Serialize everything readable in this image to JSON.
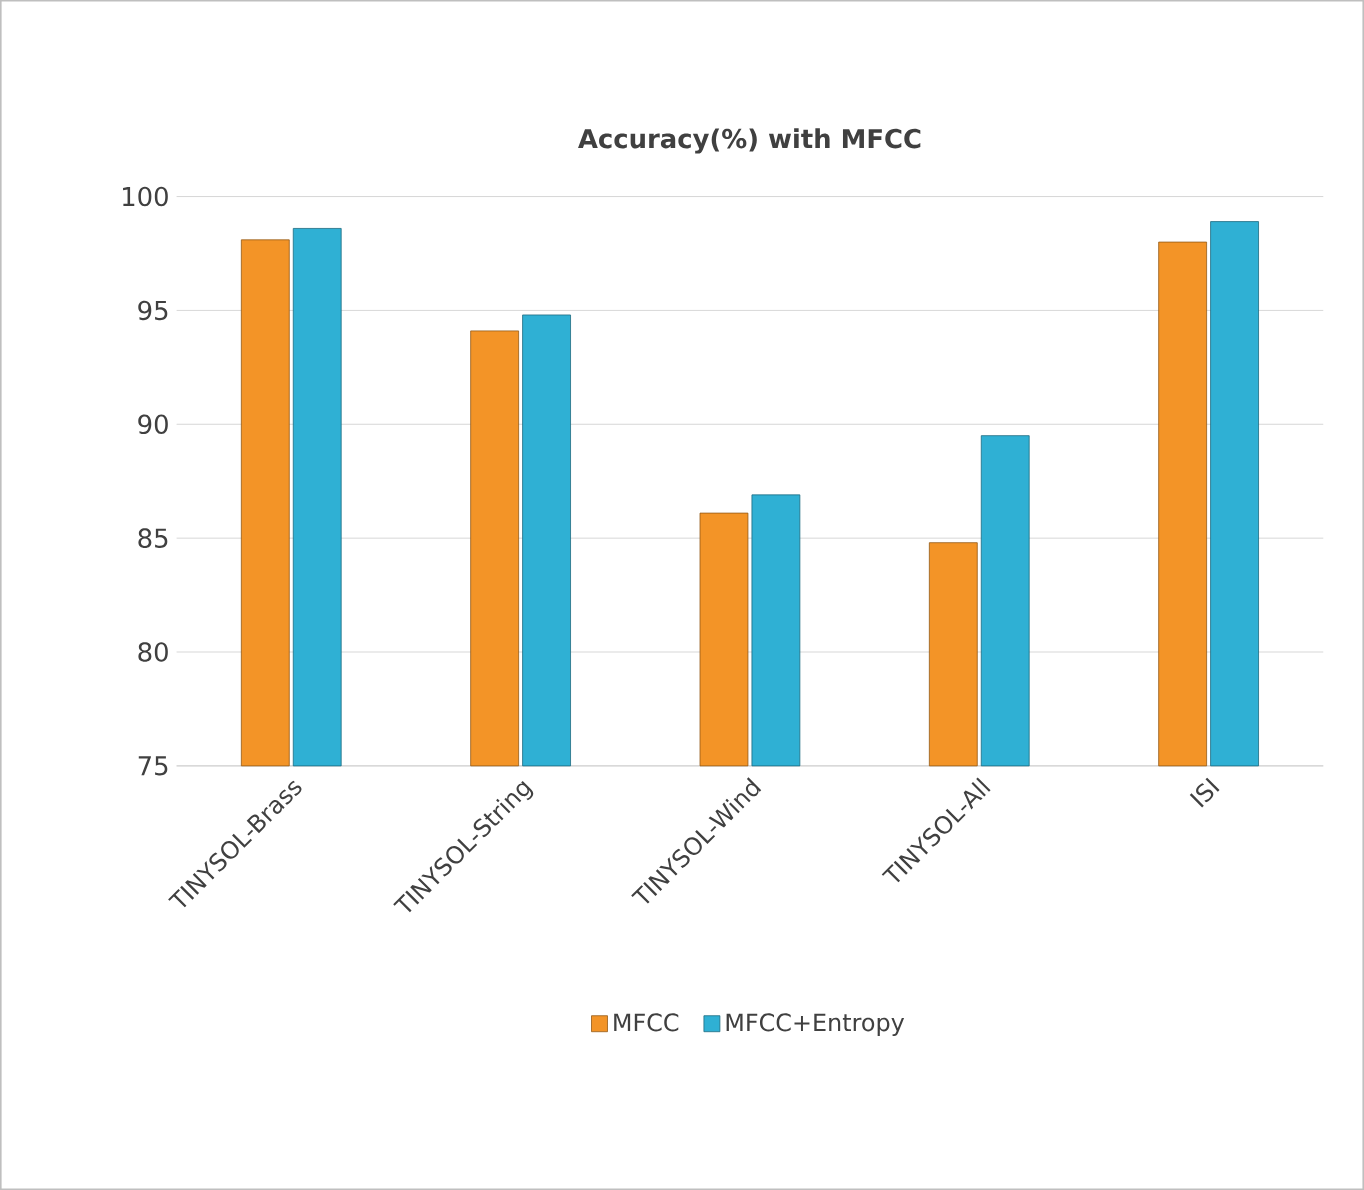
{
  "chart_data": {
    "type": "bar",
    "title": "Accuracy(%) with MFCC",
    "categories": [
      "TINYSOL-Brass",
      "TINYSOL-String",
      "TINYSOL-Wind",
      "TINYSOL-All",
      "ISI"
    ],
    "series": [
      {
        "name": "MFCC",
        "color": "#f39427",
        "values": [
          98.1,
          94.1,
          86.1,
          84.8,
          98.0
        ]
      },
      {
        "name": "MFCC+Entropy",
        "color": "#2fb0d4",
        "values": [
          98.6,
          94.8,
          86.9,
          89.5,
          98.9
        ]
      }
    ],
    "ylim": [
      75,
      100
    ],
    "yticks": [
      75,
      80,
      85,
      90,
      95,
      100
    ],
    "grid": "y",
    "legend": "bottom"
  }
}
